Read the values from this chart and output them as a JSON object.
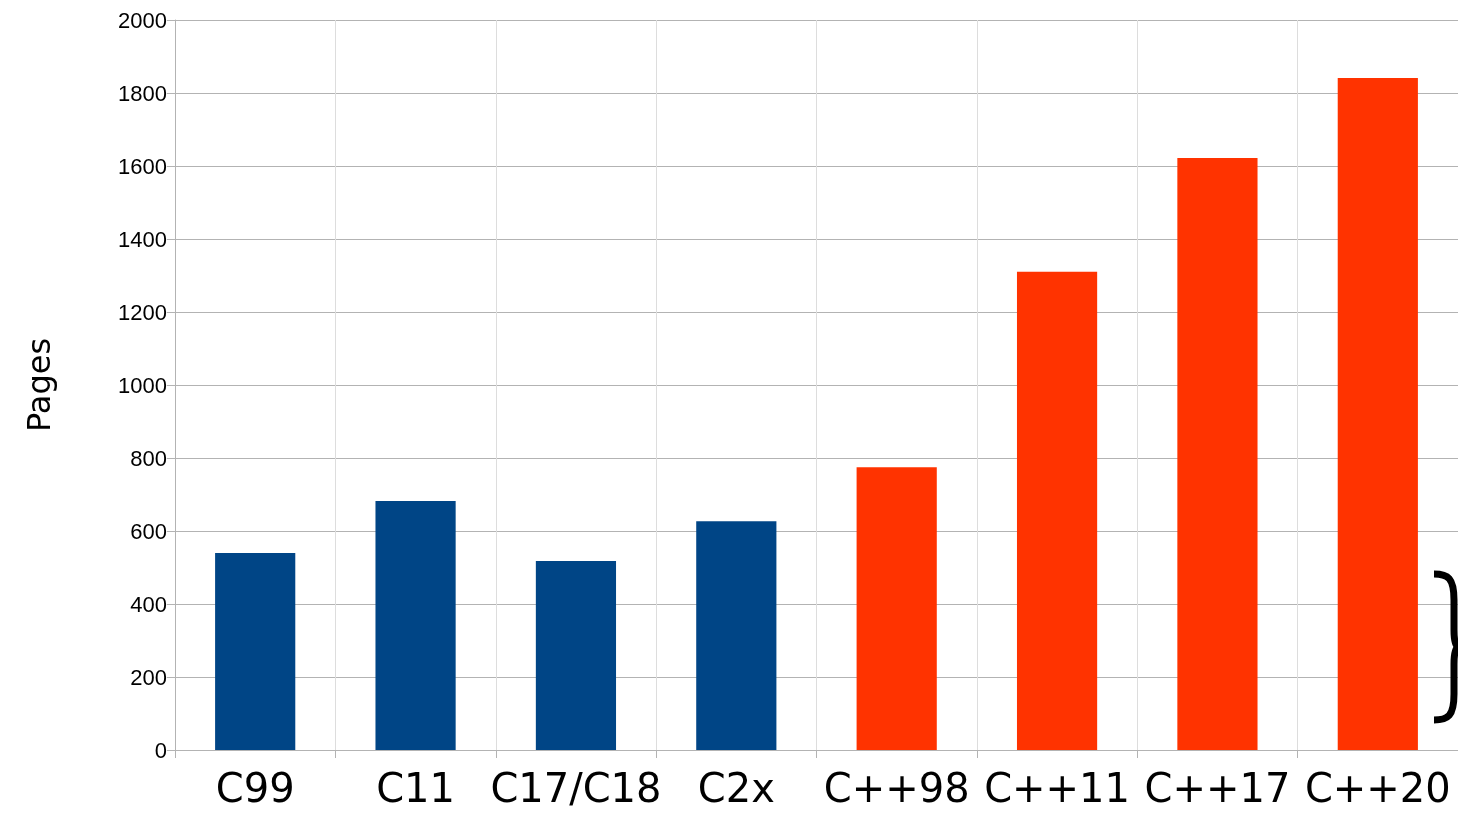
{
  "chart_data": {
    "type": "bar",
    "ylabel": "Pages",
    "categories": [
      "C99",
      "C11",
      "C17/C18",
      "C2x",
      "C++98",
      "C++11",
      "C++17",
      "C++20"
    ],
    "values": [
      540,
      682,
      518,
      627,
      775,
      1310,
      1622,
      1841
    ],
    "colors": [
      "#004586",
      "#004586",
      "#004586",
      "#004586",
      "#ff3300",
      "#ff3300",
      "#ff3300",
      "#ff3300"
    ],
    "ylim": [
      0,
      2000
    ],
    "yticks": [
      0,
      200,
      400,
      600,
      800,
      1000,
      1200,
      1400,
      1600,
      1800,
      2000
    ],
    "grid": true
  }
}
